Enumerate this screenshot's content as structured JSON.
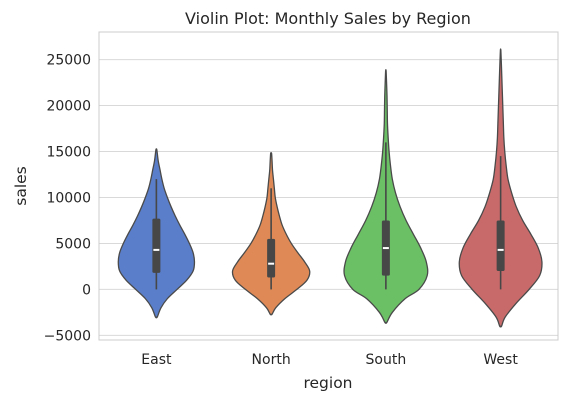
{
  "chart_data": {
    "type": "violin",
    "title": "Violin Plot: Monthly Sales by Region",
    "xlabel": "region",
    "ylabel": "sales",
    "ylim": [
      -5500,
      28000
    ],
    "yticks": [
      -5000,
      0,
      5000,
      10000,
      15000,
      20000,
      25000
    ],
    "ytick_labels": [
      "−5000",
      "0",
      "5000",
      "10000",
      "15000",
      "20000",
      "25000"
    ],
    "grid": true,
    "categories": [
      "East",
      "North",
      "South",
      "West"
    ],
    "series": [
      {
        "color": "#5a7ec9",
        "q1": 1800,
        "median": 4300,
        "q3": 7700,
        "whisker_low": 0,
        "whisker_high": 12000,
        "kde_min": -3000,
        "kde_max": 15200,
        "profile": [
          [
            -3000,
            0.02
          ],
          [
            -2000,
            0.1
          ],
          [
            -1000,
            0.24
          ],
          [
            0,
            0.45
          ],
          [
            1000,
            0.66
          ],
          [
            2000,
            0.8
          ],
          [
            3000,
            0.83
          ],
          [
            4000,
            0.8
          ],
          [
            5000,
            0.72
          ],
          [
            6000,
            0.62
          ],
          [
            7000,
            0.51
          ],
          [
            8000,
            0.41
          ],
          [
            9000,
            0.32
          ],
          [
            10000,
            0.24
          ],
          [
            11000,
            0.17
          ],
          [
            12000,
            0.12
          ],
          [
            13000,
            0.08
          ],
          [
            14000,
            0.04
          ],
          [
            15200,
            0.01
          ]
        ]
      },
      {
        "color": "#df8a56",
        "q1": 1300,
        "median": 2800,
        "q3": 5500,
        "whisker_low": 0,
        "whisker_high": 11000,
        "kde_min": -2700,
        "kde_max": 14800,
        "profile": [
          [
            -2700,
            0.02
          ],
          [
            -2000,
            0.1
          ],
          [
            -1000,
            0.3
          ],
          [
            0,
            0.56
          ],
          [
            1000,
            0.78
          ],
          [
            2000,
            0.84
          ],
          [
            3000,
            0.73
          ],
          [
            4000,
            0.58
          ],
          [
            5000,
            0.44
          ],
          [
            6000,
            0.33
          ],
          [
            7000,
            0.24
          ],
          [
            8000,
            0.18
          ],
          [
            9000,
            0.13
          ],
          [
            10000,
            0.09
          ],
          [
            11000,
            0.07
          ],
          [
            12000,
            0.05
          ],
          [
            13000,
            0.03
          ],
          [
            14000,
            0.02
          ],
          [
            14800,
            0.01
          ]
        ]
      },
      {
        "color": "#6bc065",
        "q1": 1500,
        "median": 4500,
        "q3": 7500,
        "whisker_low": 0,
        "whisker_high": 16000,
        "kde_min": -3600,
        "kde_max": 23800,
        "profile": [
          [
            -3600,
            0.02
          ],
          [
            -2500,
            0.14
          ],
          [
            -1000,
            0.42
          ],
          [
            0,
            0.72
          ],
          [
            1500,
            0.9
          ],
          [
            3000,
            0.88
          ],
          [
            4500,
            0.76
          ],
          [
            6000,
            0.6
          ],
          [
            7500,
            0.44
          ],
          [
            9000,
            0.31
          ],
          [
            10500,
            0.21
          ],
          [
            12000,
            0.14
          ],
          [
            13500,
            0.1
          ],
          [
            15000,
            0.07
          ],
          [
            16500,
            0.05
          ],
          [
            18000,
            0.035
          ],
          [
            19500,
            0.03
          ],
          [
            21000,
            0.025
          ],
          [
            22500,
            0.015
          ],
          [
            23800,
            0.005
          ]
        ]
      },
      {
        "color": "#c96a6a",
        "q1": 2000,
        "median": 4300,
        "q3": 7500,
        "whisker_low": 0,
        "whisker_high": 14500,
        "kde_min": -4000,
        "kde_max": 26000,
        "profile": [
          [
            -4000,
            0.02
          ],
          [
            -3000,
            0.1
          ],
          [
            -1500,
            0.34
          ],
          [
            0,
            0.62
          ],
          [
            1500,
            0.85
          ],
          [
            3000,
            0.9
          ],
          [
            4500,
            0.82
          ],
          [
            6000,
            0.66
          ],
          [
            7500,
            0.48
          ],
          [
            9000,
            0.34
          ],
          [
            10500,
            0.24
          ],
          [
            12000,
            0.16
          ],
          [
            13500,
            0.12
          ],
          [
            15000,
            0.09
          ],
          [
            16500,
            0.07
          ],
          [
            18000,
            0.06
          ],
          [
            19500,
            0.05
          ],
          [
            21000,
            0.04
          ],
          [
            22500,
            0.03
          ],
          [
            24000,
            0.02
          ],
          [
            26000,
            0.005
          ]
        ]
      }
    ]
  }
}
